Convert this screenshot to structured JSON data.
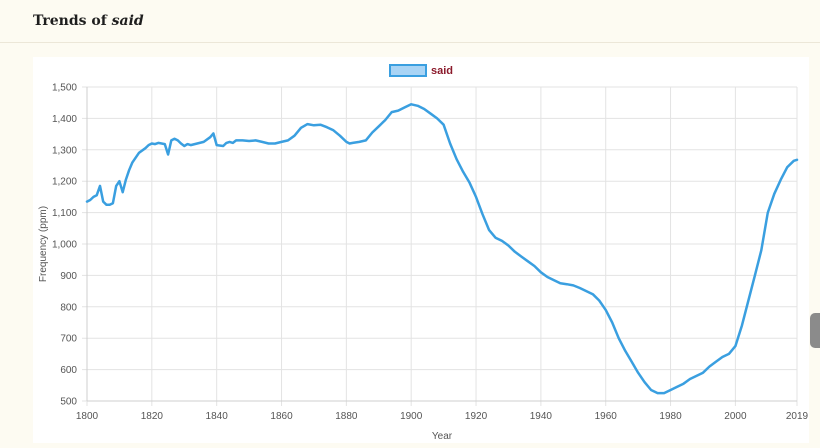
{
  "page": {
    "title_prefix": "Trends of ",
    "title_word": "said"
  },
  "chart_data": {
    "type": "line",
    "xlabel": "Year",
    "ylabel": "Frequency (ppm)",
    "xlim": [
      1800,
      2019
    ],
    "ylim": [
      500,
      1500
    ],
    "x_ticks": [
      1800,
      1820,
      1840,
      1860,
      1880,
      1900,
      1920,
      1940,
      1960,
      1980,
      2000,
      2019
    ],
    "y_ticks": [
      500,
      600,
      700,
      800,
      900,
      1000,
      1100,
      1200,
      1300,
      1400,
      1500
    ],
    "y_tick_labels": [
      "500",
      "600",
      "700",
      "800",
      "900",
      "1,000",
      "1,100",
      "1,200",
      "1,300",
      "1,400",
      "1,500"
    ],
    "grid": true,
    "legend_position": "top-center",
    "series": [
      {
        "name": "said",
        "color": "#3a9fe0",
        "fill": "#a9d4f5",
        "legend_text_color": "#8b1a2b",
        "x": [
          1800,
          1801,
          1802,
          1803,
          1804,
          1805,
          1806,
          1807,
          1808,
          1809,
          1810,
          1811,
          1812,
          1813,
          1814,
          1816,
          1818,
          1819,
          1820,
          1821,
          1822,
          1823,
          1824,
          1825,
          1826,
          1827,
          1828,
          1829,
          1830,
          1831,
          1832,
          1834,
          1836,
          1838,
          1839,
          1840,
          1842,
          1843,
          1844,
          1845,
          1846,
          1848,
          1850,
          1852,
          1854,
          1856,
          1858,
          1860,
          1862,
          1864,
          1866,
          1868,
          1870,
          1872,
          1874,
          1876,
          1878,
          1880,
          1881,
          1882,
          1884,
          1886,
          1888,
          1890,
          1892,
          1894,
          1896,
          1898,
          1900,
          1902,
          1904,
          1906,
          1908,
          1910,
          1912,
          1914,
          1916,
          1918,
          1920,
          1922,
          1924,
          1926,
          1928,
          1930,
          1932,
          1934,
          1936,
          1938,
          1940,
          1942,
          1944,
          1946,
          1948,
          1950,
          1952,
          1954,
          1956,
          1958,
          1960,
          1962,
          1964,
          1966,
          1968,
          1970,
          1972,
          1974,
          1976,
          1978,
          1980,
          1982,
          1984,
          1986,
          1988,
          1990,
          1992,
          1994,
          1996,
          1998,
          2000,
          2002,
          2004,
          2006,
          2008,
          2010,
          2012,
          2014,
          2016,
          2018,
          2019
        ],
        "values": [
          1135,
          1140,
          1150,
          1155,
          1185,
          1135,
          1125,
          1125,
          1130,
          1185,
          1200,
          1165,
          1205,
          1235,
          1260,
          1290,
          1305,
          1315,
          1320,
          1318,
          1322,
          1320,
          1318,
          1285,
          1330,
          1335,
          1330,
          1320,
          1312,
          1318,
          1315,
          1320,
          1325,
          1340,
          1352,
          1315,
          1312,
          1322,
          1325,
          1322,
          1330,
          1330,
          1328,
          1330,
          1325,
          1320,
          1320,
          1325,
          1330,
          1345,
          1370,
          1382,
          1378,
          1380,
          1372,
          1362,
          1345,
          1325,
          1320,
          1322,
          1325,
          1330,
          1355,
          1375,
          1395,
          1420,
          1425,
          1435,
          1445,
          1440,
          1430,
          1415,
          1400,
          1380,
          1320,
          1270,
          1230,
          1195,
          1150,
          1095,
          1045,
          1020,
          1010,
          995,
          975,
          960,
          945,
          930,
          910,
          895,
          885,
          875,
          872,
          868,
          860,
          850,
          840,
          820,
          790,
          750,
          700,
          660,
          625,
          590,
          560,
          535,
          525,
          525,
          535,
          545,
          555,
          570,
          580,
          590,
          610,
          625,
          640,
          650,
          675,
          740,
          820,
          900,
          980,
          1100,
          1160,
          1205,
          1245,
          1265,
          1268
        ]
      }
    ]
  }
}
